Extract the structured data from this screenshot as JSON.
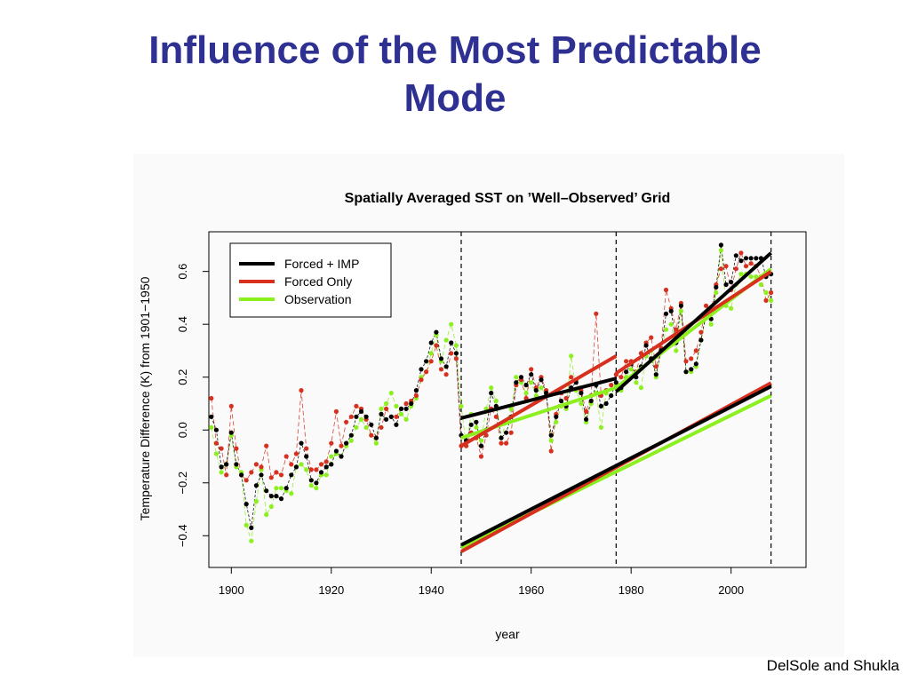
{
  "slide": {
    "title_line1": "Influence of the Most Predictable",
    "title_line2": "Mode",
    "credit": "DelSole and Shukla"
  },
  "colors": {
    "title": "#2e3192",
    "forced_imp": "#000000",
    "forced_only": "#d7301f",
    "observation": "#8cf01e"
  },
  "chart_data": {
    "type": "line",
    "title": "Spatially Averaged SST on ’Well–Observed’ Grid",
    "xlabel": "year",
    "ylabel": "Temperature Difference (K) from 1901−1950",
    "xlim": [
      1895.5,
      2015
    ],
    "ylim": [
      -0.52,
      0.75
    ],
    "xticks": [
      1900,
      1920,
      1940,
      1960,
      1980,
      2000
    ],
    "yticks": [
      -0.4,
      -0.2,
      0.0,
      0.2,
      0.4,
      0.6
    ],
    "ytick_labels": [
      "−0.4",
      "−0.2",
      "0.0",
      "0.2",
      "0.4",
      "0.6"
    ],
    "grid": false,
    "legend_position": "top-left",
    "vertical_dashed_lines": [
      1946,
      1977,
      2008
    ],
    "years": [
      1896,
      1897,
      1898,
      1899,
      1900,
      1901,
      1902,
      1903,
      1904,
      1905,
      1906,
      1907,
      1908,
      1909,
      1910,
      1911,
      1912,
      1913,
      1914,
      1915,
      1916,
      1917,
      1918,
      1919,
      1920,
      1921,
      1922,
      1923,
      1924,
      1925,
      1926,
      1927,
      1928,
      1929,
      1930,
      1931,
      1932,
      1933,
      1934,
      1935,
      1936,
      1937,
      1938,
      1939,
      1940,
      1941,
      1942,
      1943,
      1944,
      1945,
      1946,
      1947,
      1948,
      1949,
      1950,
      1951,
      1952,
      1953,
      1954,
      1955,
      1956,
      1957,
      1958,
      1959,
      1960,
      1961,
      1962,
      1963,
      1964,
      1965,
      1966,
      1967,
      1968,
      1969,
      1970,
      1971,
      1972,
      1973,
      1974,
      1975,
      1976,
      1977,
      1978,
      1979,
      1980,
      1981,
      1982,
      1983,
      1984,
      1985,
      1986,
      1987,
      1988,
      1989,
      1990,
      1991,
      1992,
      1993,
      1994,
      1995,
      1996,
      1997,
      1998,
      1999,
      2000,
      2001,
      2002,
      2003,
      2004,
      2005,
      2006,
      2007,
      2008
    ],
    "series": [
      {
        "name": "Forced + IMP",
        "color": "#000000",
        "values": [
          0.05,
          0.0,
          -0.14,
          -0.13,
          -0.01,
          -0.13,
          -0.17,
          -0.28,
          -0.37,
          -0.21,
          -0.17,
          -0.23,
          -0.25,
          -0.25,
          -0.26,
          -0.22,
          -0.17,
          -0.14,
          -0.05,
          -0.1,
          -0.19,
          -0.2,
          -0.16,
          -0.14,
          -0.13,
          -0.08,
          -0.1,
          -0.05,
          -0.02,
          0.05,
          0.07,
          0.05,
          0.02,
          -0.03,
          0.06,
          0.04,
          0.05,
          0.02,
          0.08,
          0.08,
          0.1,
          0.15,
          0.23,
          0.26,
          0.33,
          0.37,
          0.27,
          0.24,
          0.33,
          0.29,
          -0.02,
          -0.04,
          0.02,
          0.03,
          -0.06,
          0.0,
          0.14,
          0.09,
          -0.03,
          -0.01,
          0.05,
          0.18,
          0.2,
          0.17,
          0.21,
          0.15,
          0.19,
          0.14,
          -0.02,
          0.05,
          0.11,
          0.09,
          0.16,
          0.18,
          0.14,
          0.04,
          0.11,
          0.17,
          0.09,
          0.1,
          0.13,
          0.18,
          0.16,
          0.22,
          0.25,
          0.2,
          0.24,
          0.32,
          0.27,
          0.21,
          0.3,
          0.44,
          0.45,
          0.33,
          0.47,
          0.22,
          0.23,
          0.25,
          0.34,
          0.44,
          0.42,
          0.54,
          0.7,
          0.55,
          0.56,
          0.66,
          0.64,
          0.65,
          0.65,
          0.65,
          0.65,
          0.58,
          0.59
        ]
      },
      {
        "name": "Forced Only",
        "color": "#d7301f",
        "values": [
          0.12,
          -0.05,
          -0.07,
          -0.17,
          0.09,
          -0.07,
          -0.17,
          -0.19,
          -0.16,
          -0.13,
          -0.14,
          -0.06,
          -0.18,
          -0.16,
          -0.17,
          -0.1,
          -0.13,
          -0.09,
          0.15,
          -0.07,
          -0.15,
          -0.15,
          -0.13,
          -0.12,
          -0.05,
          0.07,
          -0.06,
          0.03,
          0.05,
          0.09,
          0.08,
          0.04,
          -0.02,
          -0.03,
          0.01,
          0.08,
          0.05,
          0.05,
          0.08,
          0.1,
          0.11,
          0.13,
          0.19,
          0.22,
          0.26,
          0.32,
          0.23,
          0.21,
          0.29,
          0.27,
          -0.06,
          -0.06,
          -0.01,
          -0.03,
          -0.1,
          -0.02,
          0.08,
          0.05,
          -0.05,
          -0.05,
          -0.01,
          0.17,
          0.19,
          0.12,
          0.23,
          0.16,
          0.2,
          0.15,
          -0.08,
          0.06,
          0.14,
          0.12,
          0.2,
          0.19,
          0.15,
          0.07,
          0.13,
          0.44,
          0.13,
          0.15,
          0.17,
          0.21,
          0.2,
          0.26,
          0.26,
          0.22,
          0.29,
          0.33,
          0.35,
          0.24,
          0.31,
          0.53,
          0.46,
          0.38,
          0.48,
          0.26,
          0.27,
          0.3,
          0.37,
          0.47,
          0.45,
          0.55,
          0.61,
          0.62,
          0.53,
          0.61,
          0.67,
          0.62,
          0.63,
          0.62,
          0.58,
          0.49,
          0.52
        ]
      },
      {
        "name": "Observation",
        "color": "#8cf01e",
        "values": [
          0.01,
          -0.09,
          -0.16,
          -0.13,
          -0.02,
          -0.14,
          -0.16,
          -0.36,
          -0.42,
          -0.27,
          -0.15,
          -0.32,
          -0.29,
          -0.22,
          -0.22,
          -0.23,
          -0.24,
          -0.14,
          -0.13,
          -0.15,
          -0.21,
          -0.22,
          -0.17,
          -0.17,
          -0.1,
          -0.09,
          -0.1,
          -0.06,
          -0.04,
          0.01,
          0.04,
          0.01,
          -0.02,
          -0.05,
          0.08,
          0.1,
          0.14,
          0.09,
          0.06,
          0.04,
          0.09,
          0.12,
          0.2,
          0.22,
          0.29,
          0.36,
          0.26,
          0.34,
          0.4,
          0.32,
          0.09,
          -0.06,
          0.06,
          0.01,
          -0.04,
          0.08,
          0.16,
          0.11,
          -0.03,
          0.03,
          0.08,
          0.2,
          0.18,
          0.14,
          0.18,
          0.13,
          0.16,
          0.13,
          -0.04,
          0.03,
          0.09,
          0.08,
          0.28,
          0.15,
          0.1,
          0.03,
          0.1,
          0.14,
          0.01,
          0.14,
          0.13,
          0.17,
          0.15,
          0.2,
          0.23,
          0.18,
          0.16,
          0.28,
          0.3,
          0.2,
          0.3,
          0.38,
          0.4,
          0.3,
          0.45,
          0.22,
          0.22,
          0.24,
          0.34,
          0.43,
          0.4,
          0.52,
          0.68,
          0.47,
          0.46,
          0.55,
          0.59,
          0.59,
          0.58,
          0.58,
          0.55,
          0.52,
          0.49
        ]
      }
    ],
    "trend_lines": [
      {
        "series": "Forced + IMP",
        "from": [
          1946,
          0.045
        ],
        "to": [
          1977,
          0.195
        ]
      },
      {
        "series": "Forced + IMP",
        "from": [
          1977,
          0.145
        ],
        "to": [
          2008,
          0.67
        ]
      },
      {
        "series": "Forced + IMP",
        "from": [
          1946,
          -0.435
        ],
        "to": [
          2008,
          0.165
        ]
      },
      {
        "series": "Forced Only",
        "from": [
          1946,
          -0.06
        ],
        "to": [
          1977,
          0.28
        ]
      },
      {
        "series": "Forced Only",
        "from": [
          1977,
          0.215
        ],
        "to": [
          2008,
          0.6
        ]
      },
      {
        "series": "Forced Only",
        "from": [
          1946,
          -0.46
        ],
        "to": [
          2008,
          0.178
        ]
      },
      {
        "series": "Observation",
        "from": [
          1946,
          -0.03
        ],
        "to": [
          1977,
          0.16
        ]
      },
      {
        "series": "Observation",
        "from": [
          1977,
          0.16
        ],
        "to": [
          2008,
          0.61
        ]
      },
      {
        "series": "Observation",
        "from": [
          1946,
          -0.445
        ],
        "to": [
          2008,
          0.13
        ]
      }
    ]
  }
}
